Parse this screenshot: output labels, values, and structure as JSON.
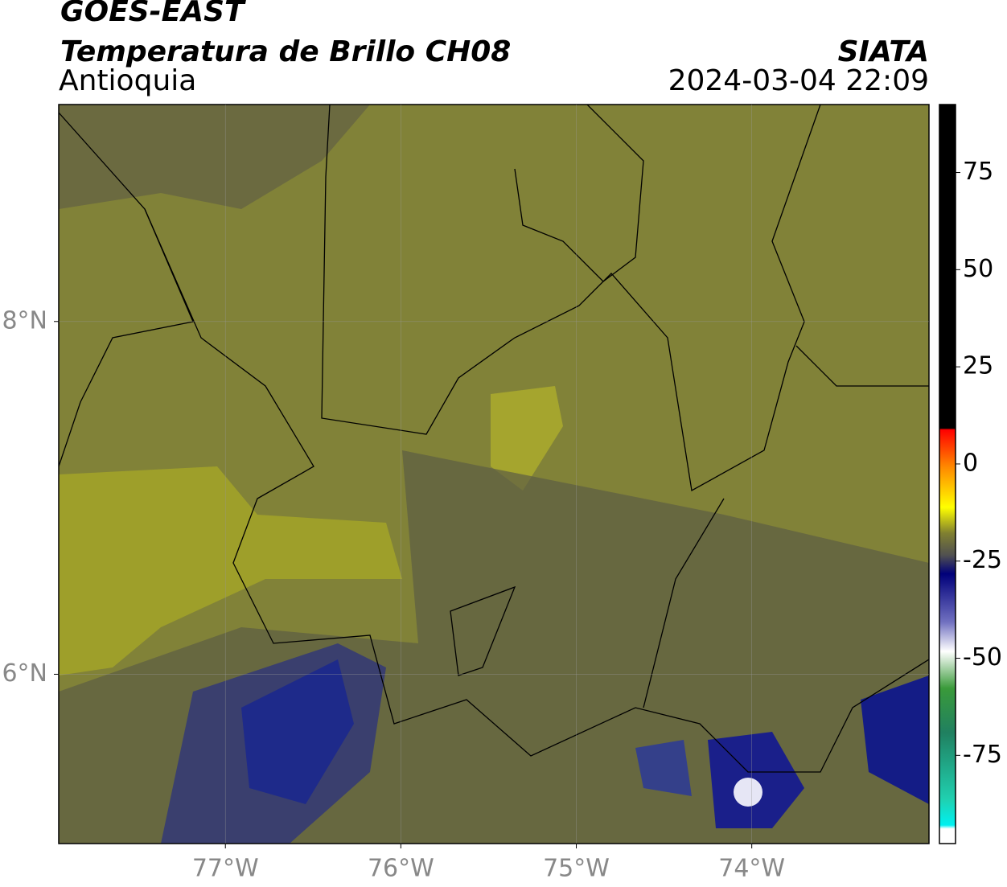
{
  "header": {
    "satellite": "GOES-EAST",
    "product": "Temperatura de Brillo CH08",
    "region": "Antioquia",
    "source": "SIATA",
    "datetime": "2024-03-04 22:09"
  },
  "map": {
    "lon_range": [
      -77.95,
      -72.99
    ],
    "lat_range": [
      5.04,
      9.23
    ],
    "lon_ticks": [
      {
        "value": -77,
        "label": "77°W"
      },
      {
        "value": -76,
        "label": "76°W"
      },
      {
        "value": -75,
        "label": "75°W"
      },
      {
        "value": -74,
        "label": "74°W"
      }
    ],
    "lat_ticks": [
      {
        "value": 8,
        "label": "8°N"
      },
      {
        "value": 6,
        "label": "6°N"
      }
    ]
  },
  "colorbar": {
    "range": [
      -97.7,
      92.5
    ],
    "ticks": [
      75,
      50,
      25,
      0,
      -25,
      -50,
      -75
    ]
  }
}
